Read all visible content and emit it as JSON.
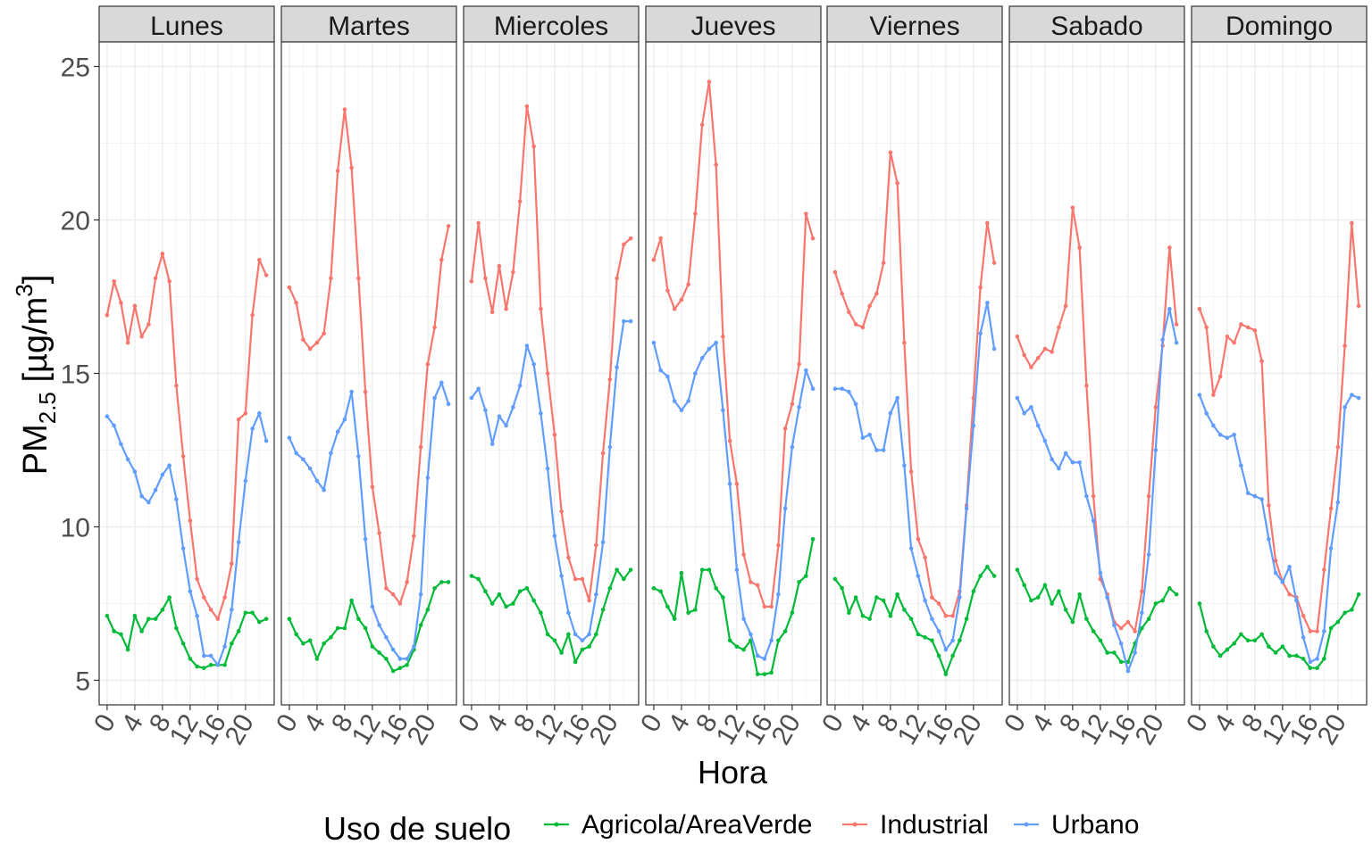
{
  "chart_data": {
    "type": "line",
    "facet_by": "day",
    "panels": [
      "Lunes",
      "Martes",
      "Miercoles",
      "Jueves",
      "Viernes",
      "Sabado",
      "Domingo"
    ],
    "x": [
      0,
      1,
      2,
      3,
      4,
      5,
      6,
      7,
      8,
      9,
      10,
      11,
      12,
      13,
      14,
      15,
      16,
      17,
      18,
      19,
      20,
      21,
      22,
      23
    ],
    "x_ticks": [
      0,
      4,
      8,
      12,
      16,
      20
    ],
    "y_ticks": [
      5,
      10,
      15,
      20,
      25
    ],
    "ylim": [
      4.2,
      25.8
    ],
    "xlim": [
      -1.15,
      24.15
    ],
    "xlabel": "Hora",
    "ylabel": {
      "main": "PM",
      "sub": "2.5",
      "unit_open": " [µg/m",
      "sup": "3",
      "unit_close": "]"
    },
    "legend": {
      "title": "Uso de suelo",
      "position": "bottom"
    },
    "grid": true,
    "series": [
      {
        "name": "Agricola/AreaVerde",
        "color": "#00BA38",
        "values": {
          "Lunes": [
            7.1,
            6.6,
            6.5,
            6.0,
            7.1,
            6.6,
            7.0,
            7.0,
            7.3,
            7.7,
            6.7,
            6.2,
            5.7,
            5.45,
            5.4,
            5.5,
            5.5,
            5.5,
            6.2,
            6.6,
            7.2,
            7.2,
            6.9,
            7.0
          ],
          "Martes": [
            7.0,
            6.5,
            6.2,
            6.3,
            5.7,
            6.2,
            6.4,
            6.7,
            6.7,
            7.6,
            7.0,
            6.7,
            6.1,
            5.9,
            5.7,
            5.3,
            5.4,
            5.5,
            6.0,
            6.8,
            7.3,
            8.0,
            8.2,
            8.2
          ],
          "Miercoles": [
            8.4,
            8.3,
            7.9,
            7.5,
            7.8,
            7.4,
            7.5,
            7.9,
            8.0,
            7.6,
            7.2,
            6.5,
            6.3,
            5.9,
            6.5,
            5.6,
            6.0,
            6.1,
            6.5,
            7.3,
            8.0,
            8.6,
            8.3,
            8.6
          ],
          "Jueves": [
            8.0,
            7.9,
            7.4,
            7.0,
            8.5,
            7.2,
            7.3,
            8.6,
            8.6,
            8.0,
            7.7,
            6.3,
            6.1,
            6.0,
            6.3,
            5.2,
            5.2,
            5.25,
            6.3,
            6.6,
            7.2,
            8.2,
            8.4,
            9.6
          ],
          "Viernes": [
            8.3,
            8.0,
            7.2,
            7.7,
            7.1,
            7.0,
            7.7,
            7.6,
            7.1,
            7.8,
            7.3,
            7.0,
            6.5,
            6.4,
            6.3,
            5.8,
            5.2,
            5.8,
            6.3,
            7.0,
            7.9,
            8.4,
            8.7,
            8.4
          ],
          "Sabado": [
            8.6,
            8.1,
            7.6,
            7.7,
            8.1,
            7.5,
            7.9,
            7.3,
            6.9,
            7.8,
            7.0,
            6.6,
            6.3,
            5.9,
            5.9,
            5.6,
            5.6,
            6.2,
            6.7,
            7.0,
            7.5,
            7.6,
            8.0,
            7.8
          ],
          "Domingo": [
            7.5,
            6.6,
            6.1,
            5.8,
            6.0,
            6.2,
            6.5,
            6.3,
            6.3,
            6.5,
            6.1,
            5.9,
            6.1,
            5.8,
            5.8,
            5.7,
            5.4,
            5.4,
            5.7,
            6.7,
            6.9,
            7.2,
            7.3,
            7.8
          ]
        }
      },
      {
        "name": "Industrial",
        "color": "#F8766D",
        "values": {
          "Lunes": [
            16.9,
            18.0,
            17.3,
            16.0,
            17.2,
            16.2,
            16.6,
            18.1,
            18.9,
            18.0,
            14.6,
            12.3,
            10.2,
            8.3,
            7.7,
            7.3,
            7.0,
            7.7,
            8.8,
            13.5,
            13.7,
            16.9,
            18.7,
            18.2
          ],
          "Martes": [
            17.8,
            17.3,
            16.1,
            15.8,
            16.0,
            16.3,
            18.1,
            21.6,
            23.6,
            21.7,
            18.1,
            14.4,
            11.3,
            9.8,
            8.0,
            7.8,
            7.5,
            8.2,
            9.7,
            12.6,
            15.3,
            16.5,
            18.7,
            19.8
          ],
          "Miercoles": [
            18.0,
            19.9,
            18.1,
            17.0,
            18.5,
            17.1,
            18.3,
            20.6,
            23.7,
            22.4,
            17.1,
            15.0,
            13.0,
            10.5,
            9.0,
            8.3,
            8.3,
            7.6,
            9.4,
            12.4,
            14.8,
            18.1,
            19.2,
            19.4
          ],
          "Jueves": [
            18.7,
            19.4,
            17.7,
            17.1,
            17.4,
            17.9,
            20.2,
            23.1,
            24.5,
            21.8,
            16.2,
            12.8,
            11.4,
            9.1,
            8.2,
            8.1,
            7.4,
            7.4,
            9.4,
            13.2,
            14.0,
            15.3,
            20.2,
            19.4
          ],
          "Viernes": [
            18.3,
            17.6,
            17.0,
            16.6,
            16.5,
            17.2,
            17.6,
            18.6,
            22.2,
            21.2,
            16.0,
            11.8,
            9.6,
            9.0,
            7.7,
            7.5,
            7.1,
            7.1,
            7.9,
            10.7,
            14.2,
            17.8,
            19.9,
            18.6
          ],
          "Sabado": [
            16.2,
            15.6,
            15.2,
            15.5,
            15.8,
            15.7,
            16.5,
            17.2,
            20.4,
            19.1,
            14.6,
            11.0,
            8.3,
            7.8,
            6.9,
            6.7,
            6.9,
            6.6,
            7.9,
            11.0,
            13.9,
            15.9,
            19.1,
            16.6
          ],
          "Domingo": [
            17.1,
            16.5,
            14.3,
            14.9,
            16.2,
            16.0,
            16.6,
            16.5,
            16.4,
            15.4,
            10.7,
            8.9,
            8.2,
            7.8,
            7.7,
            7.1,
            6.6,
            6.6,
            8.6,
            10.6,
            12.6,
            15.9,
            19.9,
            17.2
          ]
        }
      },
      {
        "name": "Urbano",
        "color": "#619CFF",
        "values": {
          "Lunes": [
            13.6,
            13.3,
            12.7,
            12.2,
            11.8,
            11.0,
            10.8,
            11.2,
            11.7,
            12.0,
            10.9,
            9.3,
            7.9,
            7.1,
            5.8,
            5.8,
            5.5,
            6.1,
            7.3,
            9.5,
            11.5,
            13.2,
            13.7,
            12.8
          ],
          "Martes": [
            12.9,
            12.4,
            12.2,
            11.9,
            11.5,
            11.2,
            12.4,
            13.1,
            13.5,
            14.4,
            12.3,
            9.6,
            7.4,
            6.8,
            6.4,
            6.0,
            5.7,
            5.7,
            6.1,
            7.8,
            11.6,
            14.2,
            14.7,
            14.0
          ],
          "Miercoles": [
            14.2,
            14.5,
            13.8,
            12.7,
            13.6,
            13.3,
            13.9,
            14.6,
            15.9,
            15.3,
            13.7,
            11.9,
            9.7,
            8.4,
            7.2,
            6.5,
            6.3,
            6.5,
            7.8,
            9.5,
            12.6,
            15.2,
            16.7,
            16.7
          ],
          "Jueves": [
            16.0,
            15.1,
            14.9,
            14.1,
            13.8,
            14.1,
            15.0,
            15.5,
            15.8,
            16.0,
            13.8,
            11.4,
            8.6,
            7.0,
            6.5,
            5.8,
            5.7,
            6.3,
            7.8,
            10.6,
            12.6,
            13.9,
            15.1,
            14.5
          ],
          "Viernes": [
            14.5,
            14.5,
            14.4,
            14.0,
            12.9,
            13.0,
            12.5,
            12.5,
            13.7,
            14.2,
            12.0,
            9.3,
            8.4,
            7.6,
            7.0,
            6.6,
            6.0,
            6.3,
            7.7,
            10.6,
            13.3,
            16.3,
            17.3,
            15.8
          ],
          "Sabado": [
            14.2,
            13.7,
            13.9,
            13.3,
            12.8,
            12.2,
            11.9,
            12.4,
            12.1,
            12.1,
            11.0,
            10.2,
            8.5,
            7.7,
            6.8,
            6.2,
            5.3,
            5.9,
            7.2,
            9.1,
            12.5,
            16.1,
            17.1,
            16.0
          ],
          "Domingo": [
            14.3,
            13.7,
            13.3,
            13.0,
            12.9,
            13.0,
            12.0,
            11.1,
            11.0,
            10.9,
            9.6,
            8.5,
            8.2,
            8.7,
            7.6,
            6.4,
            5.6,
            5.7,
            6.6,
            9.3,
            10.8,
            13.9,
            14.3,
            14.2
          ]
        }
      }
    ]
  }
}
